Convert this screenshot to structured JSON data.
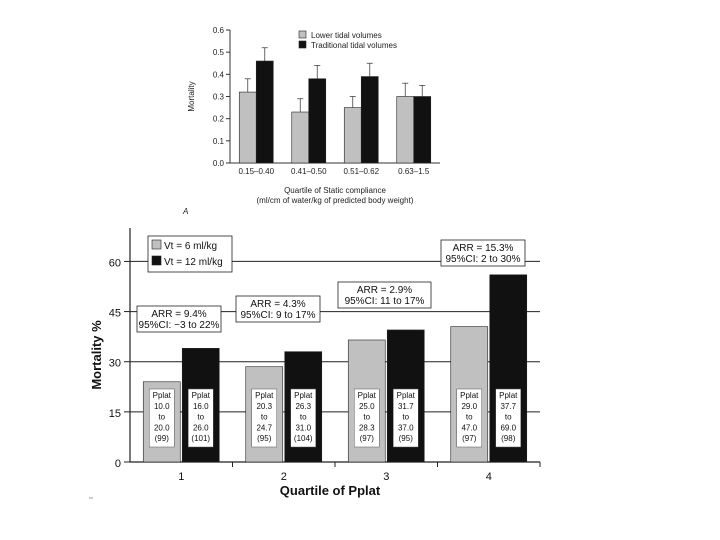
{
  "chart_data": [
    {
      "type": "bar",
      "panel_label": "",
      "title": "",
      "xlabel": "Quartile of Static compliance",
      "xlabel2": "(ml/cm of water/kg of predicted body weight)",
      "ylabel": "Mortality",
      "ylim": [
        0,
        0.6
      ],
      "yticks": [
        "0.0",
        "0.1",
        "0.2",
        "0.3",
        "0.4",
        "0.5",
        "0.6"
      ],
      "categories": [
        "0.15–0.40",
        "0.41–0.50",
        "0.51–0.62",
        "0.63–1.5"
      ],
      "legend_position": "top-right",
      "grid": false,
      "series": [
        {
          "name": "Lower tidal volumes",
          "color": "#c0c0c0",
          "values": [
            0.32,
            0.23,
            0.25,
            0.3
          ],
          "err": [
            0.06,
            0.06,
            0.05,
            0.06
          ]
        },
        {
          "name": "Traditional tidal volumes",
          "color": "#111111",
          "values": [
            0.46,
            0.38,
            0.39,
            0.3
          ],
          "err": [
            0.06,
            0.06,
            0.06,
            0.05
          ]
        }
      ]
    },
    {
      "type": "bar",
      "panel_label": "A",
      "title": "",
      "xlabel": "Quartile of Pplat",
      "ylabel": "Mortality %",
      "ylim": [
        0,
        70
      ],
      "yticks": [
        "0",
        "15",
        "30",
        "45",
        "60"
      ],
      "categories": [
        "1",
        "2",
        "3",
        "4"
      ],
      "legend_position": "top-left",
      "grid": true,
      "series": [
        {
          "name": "Vt = 6 ml/kg",
          "color": "#c0c0c0",
          "values": [
            24,
            28.5,
            36.5,
            40.5
          ]
        },
        {
          "name": "Vt = 12 ml/kg",
          "color": "#111111",
          "values": [
            34,
            33,
            39.5,
            56
          ]
        }
      ],
      "bar_labels": [
        [
          [
            "Pplat",
            "10.0",
            "to",
            "20.0",
            "(99)"
          ],
          [
            "Pplat",
            "20.3",
            "to",
            "24.7",
            "(95)"
          ],
          [
            "Pplat",
            "25.0",
            "to",
            "28.3",
            "(97)"
          ],
          [
            "Pplat",
            "29.0",
            "to",
            "47.0",
            "(97)"
          ]
        ],
        [
          [
            "Pplat",
            "16.0",
            "to",
            "26.0",
            "(101)"
          ],
          [
            "Pplat",
            "26.3",
            "to",
            "31.0",
            "(104)"
          ],
          [
            "Pplat",
            "31.7",
            "to",
            "37.0",
            "(95)"
          ],
          [
            "Pplat",
            "37.7",
            "to",
            "69.0",
            "(98)"
          ]
        ]
      ],
      "annotations": [
        [
          "ARR = 9.4%",
          "95%CI: −3 to 22%"
        ],
        [
          "ARR = 4.3%",
          "95%CI:  9 to 17%"
        ],
        [
          "ARR = 2.9%",
          "95%CI:  11 to 17%"
        ],
        [
          "ARR = 15.3%",
          "95%CI: 2 to 30%"
        ]
      ]
    }
  ]
}
